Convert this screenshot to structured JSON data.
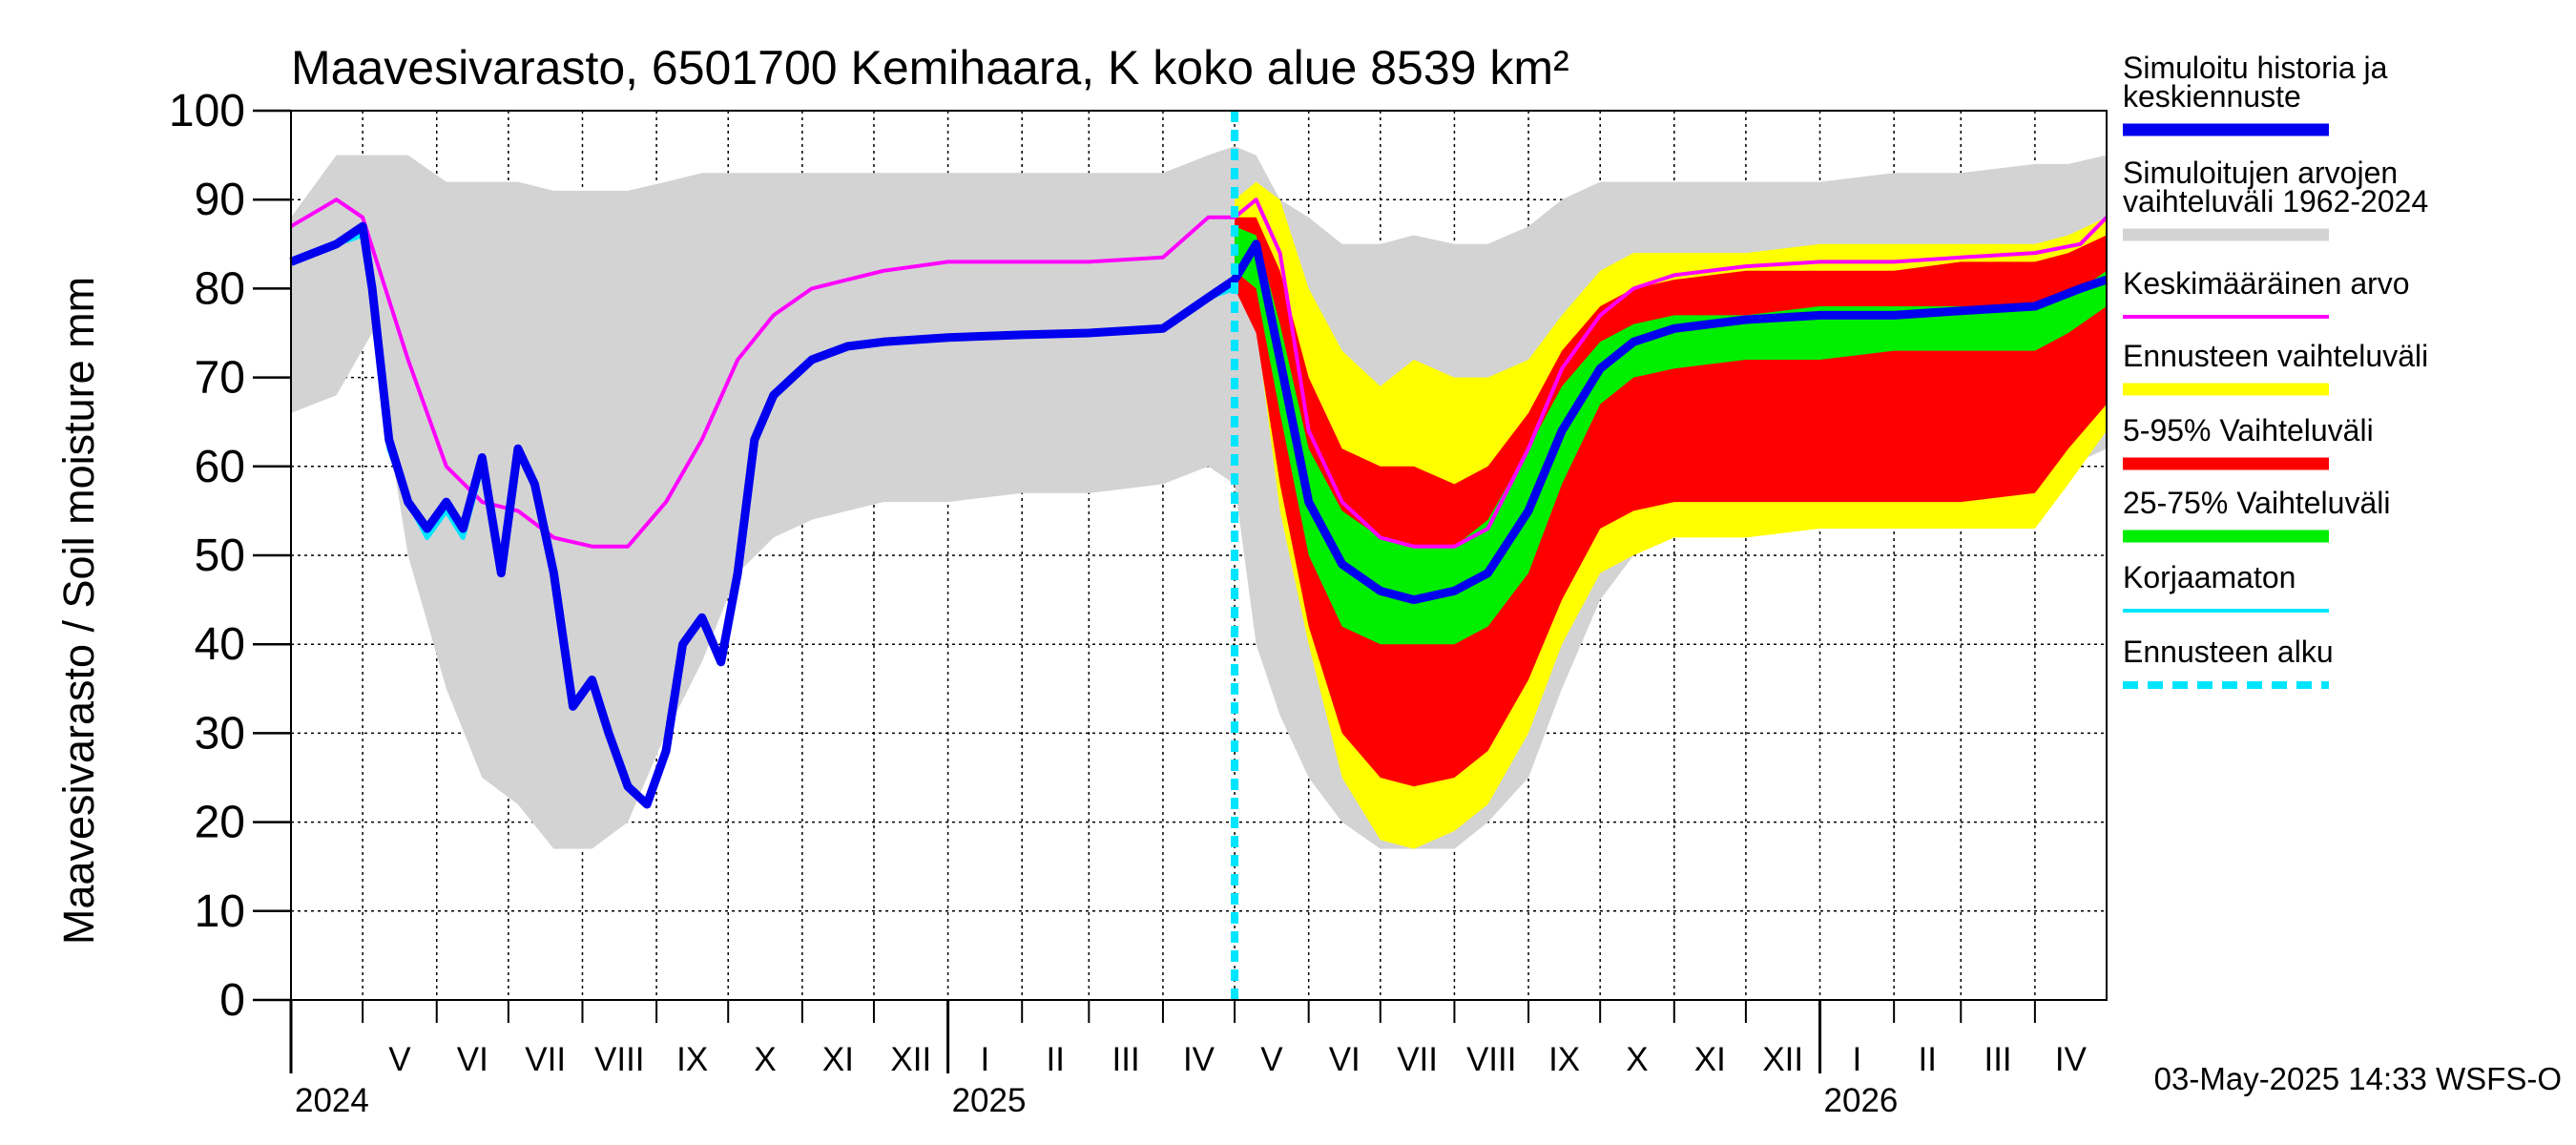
{
  "chart_data": {
    "type": "area",
    "title": "Maavesivarasto, 6501700 Kemihaara, K koko alue 8539 km²",
    "ylabel": "Maavesivarasto / Soil moisture   mm",
    "ylim": [
      0,
      100
    ],
    "yticks": [
      0,
      10,
      20,
      30,
      40,
      50,
      60,
      70,
      80,
      90,
      100
    ],
    "xlim": [
      "2024-04-01",
      "2026-05-01"
    ],
    "grid": true,
    "forecast_start": "2025-05-01",
    "months": [
      {
        "label": "V",
        "start": "2024-05-01"
      },
      {
        "label": "VI",
        "start": "2024-06-01"
      },
      {
        "label": "VII",
        "start": "2024-07-01"
      },
      {
        "label": "VIII",
        "start": "2024-08-01"
      },
      {
        "label": "IX",
        "start": "2024-09-01"
      },
      {
        "label": "X",
        "start": "2024-10-01"
      },
      {
        "label": "XI",
        "start": "2024-11-01"
      },
      {
        "label": "XII",
        "start": "2024-12-01"
      },
      {
        "label": "I",
        "start": "2025-01-01"
      },
      {
        "label": "II",
        "start": "2025-02-01"
      },
      {
        "label": "III",
        "start": "2025-03-01"
      },
      {
        "label": "IV",
        "start": "2025-04-01"
      },
      {
        "label": "V",
        "start": "2025-05-01"
      },
      {
        "label": "VI",
        "start": "2025-06-01"
      },
      {
        "label": "VII",
        "start": "2025-07-01"
      },
      {
        "label": "VIII",
        "start": "2025-08-01"
      },
      {
        "label": "IX",
        "start": "2025-09-01"
      },
      {
        "label": "X",
        "start": "2025-10-01"
      },
      {
        "label": "XI",
        "start": "2025-11-01"
      },
      {
        "label": "XII",
        "start": "2025-12-01"
      },
      {
        "label": "I",
        "start": "2026-01-01"
      },
      {
        "label": "II",
        "start": "2026-02-01"
      },
      {
        "label": "III",
        "start": "2026-03-01"
      },
      {
        "label": "IV",
        "start": "2026-04-01"
      }
    ],
    "years": [
      {
        "label": "2024",
        "start": "2024-04-01"
      },
      {
        "label": "2025",
        "start": "2025-01-01"
      },
      {
        "label": "2026",
        "start": "2026-01-01"
      }
    ],
    "series": [
      {
        "name": "Simuloitujen arvojen vaihteluväli 1962-2024",
        "kind": "band",
        "color": "#d3d3d3",
        "x": [
          "2024-04-01",
          "2024-04-20",
          "2024-05-05",
          "2024-05-20",
          "2024-06-05",
          "2024-06-20",
          "2024-07-05",
          "2024-07-20",
          "2024-08-05",
          "2024-08-20",
          "2024-09-05",
          "2024-09-20",
          "2024-10-05",
          "2024-10-20",
          "2024-11-05",
          "2024-11-20",
          "2024-12-05",
          "2025-01-01",
          "2025-02-01",
          "2025-03-01",
          "2025-04-01",
          "2025-04-20",
          "2025-05-01",
          "2025-05-10",
          "2025-05-20",
          "2025-06-01",
          "2025-06-15",
          "2025-07-01",
          "2025-07-15",
          "2025-08-01",
          "2025-08-15",
          "2025-09-01",
          "2025-09-15",
          "2025-10-01",
          "2025-10-15",
          "2025-11-01",
          "2025-12-01",
          "2026-01-01",
          "2026-02-01",
          "2026-03-01",
          "2026-04-01",
          "2026-04-15",
          "2026-05-01"
        ],
        "low": [
          66,
          68,
          75,
          50,
          35,
          25,
          22,
          17,
          17,
          20,
          30,
          38,
          48,
          52,
          54,
          55,
          56,
          56,
          57,
          57,
          58,
          60,
          58,
          40,
          32,
          25,
          20,
          17,
          17,
          17,
          20,
          25,
          35,
          45,
          50,
          52,
          53,
          53,
          54,
          54,
          55,
          60,
          62
        ],
        "high": [
          88,
          95,
          95,
          95,
          92,
          92,
          92,
          91,
          91,
          91,
          92,
          93,
          93,
          93,
          93,
          93,
          93,
          93,
          93,
          93,
          93,
          95,
          96,
          95,
          90,
          88,
          85,
          85,
          86,
          85,
          85,
          87,
          90,
          92,
          92,
          92,
          92,
          92,
          93,
          93,
          94,
          94,
          95
        ]
      },
      {
        "name": "Ennusteen vaihteluväli",
        "kind": "band",
        "color": "#ffff00",
        "x": [
          "2025-05-01",
          "2025-05-10",
          "2025-05-20",
          "2025-06-01",
          "2025-06-15",
          "2025-07-01",
          "2025-07-15",
          "2025-08-01",
          "2025-08-15",
          "2025-09-01",
          "2025-09-15",
          "2025-10-01",
          "2025-10-15",
          "2025-11-01",
          "2025-12-01",
          "2026-01-01",
          "2026-02-01",
          "2026-03-01",
          "2026-04-01",
          "2026-04-15",
          "2026-05-01"
        ],
        "low": [
          80,
          76,
          55,
          40,
          25,
          18,
          17,
          19,
          22,
          30,
          40,
          48,
          50,
          52,
          52,
          53,
          53,
          53,
          53,
          58,
          64
        ],
        "high": [
          90,
          92,
          90,
          80,
          73,
          69,
          72,
          70,
          70,
          72,
          77,
          82,
          84,
          84,
          84,
          85,
          85,
          85,
          85,
          86,
          88
        ]
      },
      {
        "name": "5-95% Vaihteluväli",
        "kind": "band",
        "color": "#ff0000",
        "x": [
          "2025-05-01",
          "2025-05-10",
          "2025-05-20",
          "2025-06-01",
          "2025-06-15",
          "2025-07-01",
          "2025-07-15",
          "2025-08-01",
          "2025-08-15",
          "2025-09-01",
          "2025-09-15",
          "2025-10-01",
          "2025-10-15",
          "2025-11-01",
          "2025-12-01",
          "2026-01-01",
          "2026-02-01",
          "2026-03-01",
          "2026-04-01",
          "2026-04-15",
          "2026-05-01"
        ],
        "low": [
          80,
          75,
          58,
          42,
          30,
          25,
          24,
          25,
          28,
          36,
          45,
          53,
          55,
          56,
          56,
          56,
          56,
          56,
          57,
          62,
          67
        ],
        "high": [
          88,
          88,
          82,
          70,
          62,
          60,
          60,
          58,
          60,
          66,
          73,
          78,
          80,
          81,
          82,
          82,
          82,
          83,
          83,
          84,
          86
        ]
      },
      {
        "name": "25-75% Vaihteluväli",
        "kind": "band",
        "color": "#00ee00",
        "x": [
          "2025-05-01",
          "2025-05-10",
          "2025-05-20",
          "2025-06-01",
          "2025-06-15",
          "2025-07-01",
          "2025-07-15",
          "2025-08-01",
          "2025-08-15",
          "2025-09-01",
          "2025-09-15",
          "2025-10-01",
          "2025-10-15",
          "2025-11-01",
          "2025-12-01",
          "2026-01-01",
          "2026-02-01",
          "2026-03-01",
          "2026-04-01",
          "2026-04-15",
          "2026-05-01"
        ],
        "low": [
          82,
          80,
          66,
          50,
          42,
          40,
          40,
          40,
          42,
          48,
          58,
          67,
          70,
          71,
          72,
          72,
          73,
          73,
          73,
          75,
          78
        ],
        "high": [
          87,
          86,
          76,
          62,
          55,
          52,
          51,
          51,
          54,
          62,
          69,
          74,
          76,
          77,
          77,
          78,
          78,
          78,
          78,
          79,
          82
        ]
      },
      {
        "name": "Keskimääräinen arvo",
        "kind": "line",
        "color": "#ff00ff",
        "width": 4,
        "x": [
          "2024-04-01",
          "2024-04-20",
          "2024-05-01",
          "2024-05-20",
          "2024-06-05",
          "2024-06-20",
          "2024-07-05",
          "2024-07-20",
          "2024-08-05",
          "2024-08-20",
          "2024-09-05",
          "2024-09-20",
          "2024-10-05",
          "2024-10-20",
          "2024-11-05",
          "2024-11-20",
          "2024-12-05",
          "2025-01-01",
          "2025-02-01",
          "2025-03-01",
          "2025-04-01",
          "2025-04-20",
          "2025-05-01",
          "2025-05-10",
          "2025-05-20",
          "2025-06-01",
          "2025-06-15",
          "2025-07-01",
          "2025-07-15",
          "2025-08-01",
          "2025-08-15",
          "2025-09-01",
          "2025-09-15",
          "2025-10-01",
          "2025-10-15",
          "2025-11-01",
          "2025-12-01",
          "2026-01-01",
          "2026-02-01",
          "2026-03-01",
          "2026-04-01",
          "2026-04-20",
          "2026-05-01"
        ],
        "y": [
          87,
          90,
          88,
          72,
          60,
          56,
          55,
          52,
          51,
          51,
          56,
          63,
          72,
          77,
          80,
          81,
          82,
          83,
          83,
          83,
          83.5,
          88,
          88,
          90,
          84,
          64,
          56,
          52,
          51,
          51,
          53,
          62,
          71,
          77,
          80,
          81.5,
          82.5,
          83,
          83,
          83.5,
          84,
          85,
          88
        ]
      },
      {
        "name": "Korjaamaton",
        "kind": "line",
        "color": "#00e5ff",
        "width": 5,
        "x": [
          "2024-04-01",
          "2024-04-20",
          "2024-05-01",
          "2024-05-05",
          "2024-05-12",
          "2024-05-20",
          "2024-05-28",
          "2024-06-05",
          "2024-06-12",
          "2024-06-20",
          "2024-06-28",
          "2024-07-05",
          "2024-07-12",
          "2024-07-20",
          "2024-07-28",
          "2024-08-05",
          "2024-08-12",
          "2024-08-20",
          "2024-08-28",
          "2024-09-05",
          "2024-09-12",
          "2024-09-20",
          "2024-09-28",
          "2024-10-05",
          "2024-10-12",
          "2024-10-20",
          "2024-10-28",
          "2024-11-05",
          "2024-11-20",
          "2024-12-05",
          "2025-01-01",
          "2025-02-01",
          "2025-03-01",
          "2025-04-01",
          "2025-04-20",
          "2025-05-01"
        ],
        "y": [
          83,
          85,
          86,
          79,
          62,
          56,
          52,
          55,
          52,
          60,
          48,
          62,
          58,
          48,
          33,
          36,
          30,
          24,
          22,
          28,
          40,
          43,
          38,
          48,
          63,
          68,
          70,
          72,
          73.5,
          74,
          74.5,
          74.8,
          75,
          75.5,
          79,
          80
        ]
      },
      {
        "name": "Simuloitu historia ja keskiennuste",
        "kind": "line",
        "color": "#0000ee",
        "width": 9,
        "x": [
          "2024-04-01",
          "2024-04-20",
          "2024-05-01",
          "2024-05-05",
          "2024-05-12",
          "2024-05-20",
          "2024-05-28",
          "2024-06-05",
          "2024-06-12",
          "2024-06-20",
          "2024-06-28",
          "2024-07-05",
          "2024-07-12",
          "2024-07-20",
          "2024-07-28",
          "2024-08-05",
          "2024-08-12",
          "2024-08-20",
          "2024-08-28",
          "2024-09-05",
          "2024-09-12",
          "2024-09-20",
          "2024-09-28",
          "2024-10-05",
          "2024-10-12",
          "2024-10-20",
          "2024-10-28",
          "2024-11-05",
          "2024-11-20",
          "2024-12-05",
          "2025-01-01",
          "2025-02-01",
          "2025-03-01",
          "2025-04-01",
          "2025-04-20",
          "2025-05-01",
          "2025-05-10",
          "2025-05-20",
          "2025-06-01",
          "2025-06-15",
          "2025-07-01",
          "2025-07-15",
          "2025-08-01",
          "2025-08-15",
          "2025-09-01",
          "2025-09-15",
          "2025-10-01",
          "2025-10-15",
          "2025-11-01",
          "2025-12-01",
          "2026-01-01",
          "2026-02-01",
          "2026-03-01",
          "2026-04-01",
          "2026-04-20",
          "2026-05-01"
        ],
        "y": [
          83,
          85,
          87,
          80,
          63,
          56,
          53,
          56,
          53,
          61,
          48,
          62,
          58,
          48,
          33,
          36,
          30,
          24,
          22,
          28,
          40,
          43,
          38,
          48,
          63,
          68,
          70,
          72,
          73.5,
          74,
          74.5,
          74.8,
          75,
          75.5,
          79,
          81,
          85,
          72,
          56,
          49,
          46,
          45,
          46,
          48,
          55,
          64,
          71,
          74,
          75.5,
          76.5,
          77,
          77,
          77.5,
          78,
          80,
          81
        ]
      },
      {
        "name": "Ennusteen alku",
        "kind": "vline",
        "color": "#00e5ff",
        "x": "2025-05-01"
      }
    ],
    "legend": {
      "placement": "right",
      "entries": [
        {
          "text": "Simuloitu historia ja keskiennuste",
          "color": "#0000ee",
          "style": "thick"
        },
        {
          "text": "Simuloitujen arvojen vaihteluväli 1962-2024",
          "color": "#d3d3d3",
          "style": "thick"
        },
        {
          "text": "Keskimääräinen arvo",
          "color": "#ff00ff",
          "style": "thin"
        },
        {
          "text": "Ennusteen vaihteluväli",
          "color": "#ffff00",
          "style": "thick"
        },
        {
          "text": "5-95% Vaihteluväli",
          "color": "#ff0000",
          "style": "thick"
        },
        {
          "text": "25-75% Vaihteluväli",
          "color": "#00ee00",
          "style": "thick"
        },
        {
          "text": "Korjaamaton",
          "color": "#00e5ff",
          "style": "thin"
        },
        {
          "text": "Ennusteen alku",
          "color": "#00e5ff",
          "style": "dashed"
        }
      ]
    },
    "footer": "03-May-2025 14:33 WSFS-O"
  }
}
